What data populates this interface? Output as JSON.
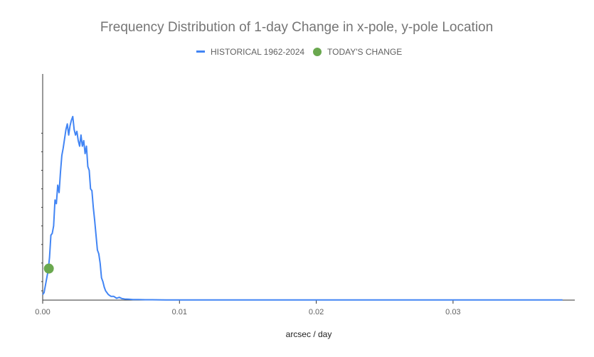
{
  "chart_data": {
    "type": "line",
    "title": "Frequency Distribution of 1-day Change in x-pole, y-pole Location",
    "xlabel": "arcsec / day",
    "ylabel": "",
    "xlim": [
      0,
      0.0389
    ],
    "ylim": [
      0,
      1.0
    ],
    "x_ticks": [
      0,
      0.01,
      0.02,
      0.03
    ],
    "x_tick_labels": [
      "0.00",
      "0.01",
      "0.02",
      "0.03"
    ],
    "y_tick_values": [
      0.05,
      0.1,
      0.2,
      0.3,
      0.4,
      0.5,
      0.6,
      0.7,
      0.8,
      0.9
    ],
    "legend_position": "top-center",
    "series": [
      {
        "name": "HISTORICAL 1962-2024",
        "color": "#4285f4",
        "x": [
          0.0,
          0.0001,
          0.0002,
          0.0003,
          0.0004,
          0.0005,
          0.0006,
          0.0007,
          0.0008,
          0.0009,
          0.001,
          0.0011,
          0.0012,
          0.0013,
          0.0014,
          0.0015,
          0.0016,
          0.0017,
          0.0018,
          0.0019,
          0.002,
          0.0021,
          0.0022,
          0.0023,
          0.0024,
          0.0025,
          0.0026,
          0.0027,
          0.0028,
          0.0029,
          0.003,
          0.0031,
          0.0032,
          0.0033,
          0.0034,
          0.0035,
          0.0036,
          0.0037,
          0.0038,
          0.0039,
          0.004,
          0.0041,
          0.0042,
          0.0043,
          0.0044,
          0.0045,
          0.0046,
          0.0047,
          0.0048,
          0.005,
          0.0052,
          0.0054,
          0.0056,
          0.0058,
          0.006,
          0.0063,
          0.0066,
          0.007,
          0.0075,
          0.008,
          0.009,
          0.01,
          0.012,
          0.015,
          0.02,
          0.025,
          0.03,
          0.035,
          0.038
        ],
        "values": [
          0.03,
          0.04,
          0.08,
          0.12,
          0.16,
          0.23,
          0.35,
          0.36,
          0.4,
          0.54,
          0.52,
          0.62,
          0.58,
          0.69,
          0.78,
          0.82,
          0.87,
          0.92,
          0.95,
          0.89,
          0.94,
          0.97,
          0.99,
          0.92,
          0.89,
          0.91,
          0.86,
          0.83,
          0.89,
          0.83,
          0.86,
          0.79,
          0.83,
          0.72,
          0.7,
          0.6,
          0.59,
          0.5,
          0.43,
          0.35,
          0.27,
          0.25,
          0.2,
          0.12,
          0.1,
          0.07,
          0.05,
          0.04,
          0.03,
          0.02,
          0.02,
          0.01,
          0.015,
          0.008,
          0.006,
          0.005,
          0.003,
          0.003,
          0.002,
          0.002,
          0.001,
          0.001,
          0.001,
          0.001,
          0.001,
          0.001,
          0.001,
          0.001,
          0.001
        ]
      },
      {
        "name": "TODAY'S CHANGE",
        "color": "#6aa84f",
        "marker": "circle",
        "points": [
          {
            "x": 0.00045,
            "y": 0.17
          }
        ]
      }
    ]
  }
}
